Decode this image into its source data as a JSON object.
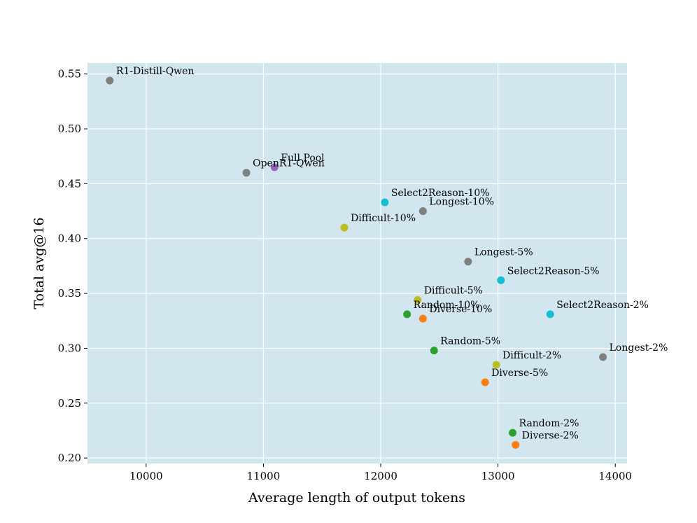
{
  "chart_data": {
    "type": "scatter",
    "title": "",
    "xlabel": "Average length of output tokens",
    "ylabel": "Total avg@16",
    "xlim": [
      9500,
      14100
    ],
    "ylim": [
      0.195,
      0.56
    ],
    "xticks": [
      10000,
      11000,
      12000,
      13000,
      14000
    ],
    "yticks": [
      0.2,
      0.25,
      0.3,
      0.35,
      0.4,
      0.45,
      0.5,
      0.55
    ],
    "grid": true,
    "background": "#d2e6f0",
    "points": [
      {
        "label": "R1-Distill-Qwen",
        "x": 9690,
        "y": 0.544,
        "color": "#7f7f7f",
        "label_dx": 9,
        "label_dy": -9
      },
      {
        "label": "OpenR1-Qwen",
        "x": 10855,
        "y": 0.46,
        "color": "#7f7f7f",
        "label_dx": 9,
        "label_dy": -9
      },
      {
        "label": "Full Pool",
        "x": 11095,
        "y": 0.465,
        "color": "#9467bd",
        "label_dx": 9,
        "label_dy": -9
      },
      {
        "label": "Select2Reason-10%",
        "x": 12035,
        "y": 0.433,
        "color": "#17becf",
        "label_dx": 9,
        "label_dy": -9
      },
      {
        "label": "Longest-10%",
        "x": 12360,
        "y": 0.425,
        "color": "#7f7f7f",
        "label_dx": 9,
        "label_dy": -9
      },
      {
        "label": "Difficult-10%",
        "x": 11690,
        "y": 0.41,
        "color": "#bcbd22",
        "label_dx": 9,
        "label_dy": -9
      },
      {
        "label": "Longest-5%",
        "x": 12745,
        "y": 0.379,
        "color": "#7f7f7f",
        "label_dx": 9,
        "label_dy": -9
      },
      {
        "label": "Select2Reason-5%",
        "x": 13025,
        "y": 0.362,
        "color": "#17becf",
        "label_dx": 9,
        "label_dy": -9
      },
      {
        "label": "Difficult-5%",
        "x": 12315,
        "y": 0.344,
        "color": "#bcbd22",
        "label_dx": 9,
        "label_dy": -9
      },
      {
        "label": "Random-10%",
        "x": 12225,
        "y": 0.331,
        "color": "#2ca02c",
        "label_dx": 9,
        "label_dy": -9
      },
      {
        "label": "Diverse-10%",
        "x": 12360,
        "y": 0.327,
        "color": "#ff7f0e",
        "label_dx": 9,
        "label_dy": -9
      },
      {
        "label": "Select2Reason-2%",
        "x": 13445,
        "y": 0.331,
        "color": "#17becf",
        "label_dx": 9,
        "label_dy": -9
      },
      {
        "label": "Random-5%",
        "x": 12455,
        "y": 0.298,
        "color": "#2ca02c",
        "label_dx": 9,
        "label_dy": -9
      },
      {
        "label": "Longest-2%",
        "x": 13895,
        "y": 0.292,
        "color": "#7f7f7f",
        "label_dx": 9,
        "label_dy": -9
      },
      {
        "label": "Difficult-2%",
        "x": 12985,
        "y": 0.285,
        "color": "#bcbd22",
        "label_dx": 9,
        "label_dy": -9
      },
      {
        "label": "Diverse-5%",
        "x": 12890,
        "y": 0.269,
        "color": "#ff7f0e",
        "label_dx": 9,
        "label_dy": -9
      },
      {
        "label": "Random-2%",
        "x": 13125,
        "y": 0.223,
        "color": "#2ca02c",
        "label_dx": 9,
        "label_dy": -9
      },
      {
        "label": "Diverse-2%",
        "x": 13150,
        "y": 0.212,
        "color": "#ff7f0e",
        "label_dx": 9,
        "label_dy": -9
      }
    ]
  }
}
